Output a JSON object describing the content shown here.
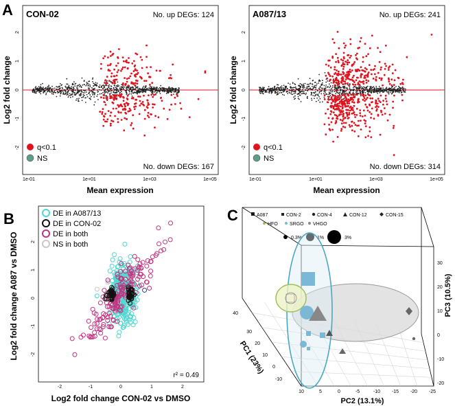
{
  "panel_labels": {
    "a": "A",
    "b": "B",
    "c": "C"
  },
  "chart_data": [
    {
      "type": "scatter",
      "panel": "A-left",
      "title": "CON-02",
      "xlabel": "Mean expression",
      "ylabel": "Log2 fold change",
      "xscale": "log10",
      "xlim": [
        0.1,
        100000
      ],
      "ylim": [
        -2.3,
        2.3
      ],
      "xticks": [
        "1e-01",
        "1e+01",
        "1e+03",
        "1e+05"
      ],
      "yticks": [
        "-2",
        "-1",
        "0",
        "1",
        "2"
      ],
      "annotations": {
        "up": "No. up DEGs: 124",
        "down": "No. down DEGs: 167"
      },
      "legend": [
        {
          "label": "q<0.1",
          "color": "#e0141e"
        },
        {
          "label": "NS",
          "color": "#5f9e8a"
        }
      ],
      "colors": {
        "sig": "#e0141e",
        "ns": "#222222",
        "hline": "#e0141e"
      },
      "up": 124,
      "down": 167,
      "spread": 0.55
    },
    {
      "type": "scatter",
      "panel": "A-right",
      "title": "A087/13",
      "xlabel": "Mean expression",
      "ylabel": "Log2 fold change",
      "xscale": "log10",
      "xlim": [
        0.1,
        100000
      ],
      "ylim": [
        -2.3,
        2.3
      ],
      "xticks": [
        "1e-01",
        "1e+01",
        "1e+03",
        "1e+05"
      ],
      "yticks": [
        "-2",
        "-1",
        "0",
        "1",
        "2"
      ],
      "annotations": {
        "up": "No. up DEGs: 241",
        "down": "No. down DEGs: 314"
      },
      "legend": [
        {
          "label": "q<0.1",
          "color": "#e0141e"
        },
        {
          "label": "NS",
          "color": "#5f9e8a"
        }
      ],
      "colors": {
        "sig": "#e0141e",
        "ns": "#222222",
        "hline": "#e0141e"
      },
      "up": 241,
      "down": 314,
      "spread": 0.85
    },
    {
      "type": "scatter",
      "panel": "B",
      "xlabel": "Log2 fold change CON-02 vs DMSO",
      "ylabel": "Log2 fold change A087 vs DMSO",
      "xlim": [
        -2.3,
        2.3
      ],
      "ylim": [
        -2.3,
        2.3
      ],
      "xticks": [
        "-2",
        "-1",
        "0",
        "1",
        "2"
      ],
      "yticks": [
        "-2",
        "-1",
        "0",
        "1",
        "2"
      ],
      "annotation": "r² = 0.49",
      "legend": [
        {
          "label": "DE in A087/13",
          "color": "#4fd6d0"
        },
        {
          "label": "DE in CON-02",
          "color": "#111111"
        },
        {
          "label": "DE in both",
          "color": "#c2317e"
        },
        {
          "label": "NS in both",
          "color": "#c8c8c8"
        }
      ]
    },
    {
      "type": "scatter",
      "panel": "C",
      "subtype": "3d-pca",
      "xlabel": "PC2 (13.1%)",
      "ylabel": "PC1 (23%)",
      "zlabel": "PC3 (10.5%)",
      "xticks": [
        "10",
        "5",
        "0",
        "-5",
        "-10",
        "-15",
        "-20",
        "-25"
      ],
      "yticks": [
        "-10",
        "0",
        "10",
        "20",
        "30",
        "40"
      ],
      "zticks": [
        "-20",
        "-10",
        "0",
        "10",
        "20",
        "30"
      ],
      "shape_legend": [
        "A087",
        "CON-2",
        "CON-4",
        "CON-12",
        "CON-15"
      ],
      "color_legend": [
        {
          "label": "HFO",
          "color": "#9cbf5a"
        },
        {
          "label": "SRGO",
          "color": "#7ab8d6"
        },
        {
          "label": "VHGO",
          "color": "#888888"
        }
      ],
      "size_legend": [
        "0.3%",
        "1%",
        "3%"
      ]
    }
  ]
}
